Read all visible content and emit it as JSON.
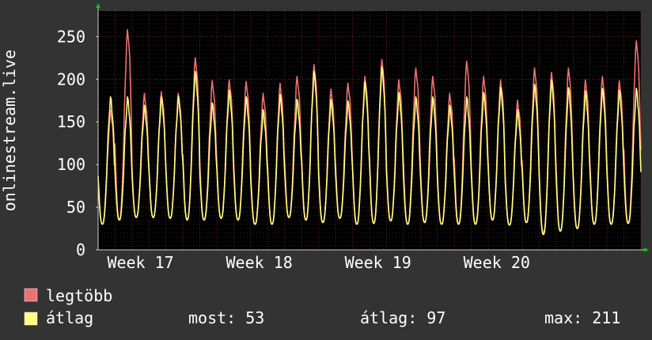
{
  "chart_data": {
    "type": "line",
    "ylabel": "onlinestream.live",
    "ylim": [
      0,
      280
    ],
    "y_ticks": [
      0,
      50,
      100,
      150,
      200,
      250
    ],
    "x_unit": "day",
    "x_range": [
      0,
      32
    ],
    "x_ticks": [
      {
        "label": "Week 17",
        "x": 2
      },
      {
        "label": "Week 18",
        "x": 9
      },
      {
        "label": "Week 19",
        "x": 16
      },
      {
        "label": "Week 20",
        "x": 23
      }
    ],
    "grid": true,
    "legend": "bottom-left",
    "colors": {
      "background": "#333333",
      "plot_background": "#000000",
      "grid_minor": "#3a3a3a",
      "grid_major": "#7a2a2a",
      "axis": "#cccccc",
      "arrow": "#00cc00",
      "max_series": "#f07070",
      "avg_series": "#ffff80"
    },
    "series": [
      {
        "name": "legtöbb",
        "color": "#f07070",
        "daily_peaks": [
          160,
          255,
          180,
          182,
          180,
          222,
          195,
          196,
          194,
          180,
          192,
          200,
          214,
          185,
          192,
          200,
          220,
          196,
          210,
          200,
          180,
          218,
          200,
          196,
          172,
          210,
          205,
          210,
          196,
          200,
          195,
          242
        ],
        "daily_troughs": [
          30,
          35,
          38,
          38,
          37,
          35,
          35,
          37,
          35,
          30,
          30,
          38,
          35,
          32,
          37,
          30,
          31,
          34,
          30,
          32,
          30,
          30,
          30,
          35,
          29,
          32,
          20,
          22,
          25,
          30,
          30,
          31
        ],
        "values": [
          160,
          30,
          255,
          35,
          180,
          38,
          182,
          38,
          180,
          37,
          222,
          35,
          195,
          35,
          196,
          37,
          194,
          35,
          180,
          30,
          192,
          30,
          200,
          38,
          214,
          35,
          185,
          32,
          192,
          37,
          200,
          30,
          220,
          31,
          196,
          34,
          210,
          30,
          200,
          32,
          180,
          30,
          218,
          30,
          200,
          30,
          196,
          35,
          172,
          29,
          210,
          32,
          205,
          20,
          210,
          22,
          196,
          25,
          200,
          30,
          195,
          30,
          242,
          31,
          55
        ]
      },
      {
        "name": "átlag",
        "color": "#ffff80",
        "daily_peaks": [
          175,
          175,
          165,
          175,
          176,
          205,
          168,
          183,
          175,
          160,
          178,
          172,
          205,
          172,
          170,
          193,
          210,
          180,
          175,
          175,
          165,
          175,
          180,
          186,
          160,
          190,
          195,
          186,
          182,
          185,
          183,
          185
        ],
        "daily_troughs": [
          30,
          35,
          38,
          38,
          37,
          35,
          35,
          37,
          35,
          30,
          30,
          38,
          35,
          32,
          37,
          30,
          31,
          34,
          30,
          32,
          30,
          30,
          30,
          35,
          29,
          32,
          18,
          22,
          25,
          30,
          30,
          31
        ],
        "values": [
          175,
          30,
          175,
          35,
          165,
          38,
          175,
          38,
          176,
          37,
          205,
          35,
          168,
          35,
          183,
          37,
          175,
          35,
          160,
          30,
          178,
          30,
          172,
          38,
          205,
          35,
          172,
          32,
          170,
          37,
          193,
          30,
          210,
          31,
          180,
          34,
          175,
          30,
          175,
          32,
          165,
          30,
          175,
          30,
          180,
          30,
          186,
          35,
          160,
          29,
          190,
          32,
          195,
          18,
          186,
          22,
          182,
          25,
          185,
          30,
          183,
          30,
          185,
          31,
          53
        ]
      }
    ],
    "legend_entries": [
      {
        "name": "legtöbb",
        "color": "#f07070"
      },
      {
        "name": "átlag",
        "color": "#ffff80"
      }
    ],
    "stats": {
      "now_label": "most: 53",
      "avg_label": "átlag: 97",
      "max_label": "max: 211"
    }
  }
}
